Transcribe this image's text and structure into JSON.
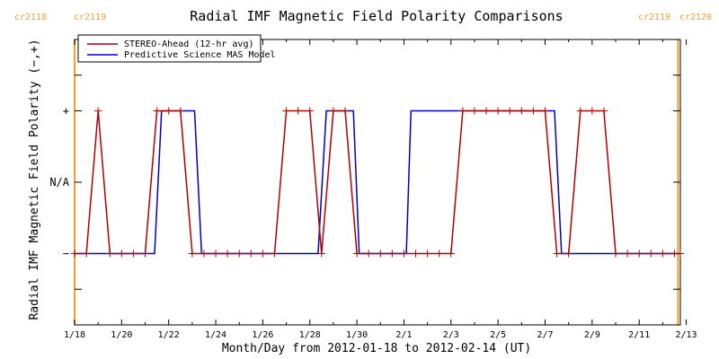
{
  "chart_data": {
    "type": "line",
    "title": "Radial IMF Magnetic Field Polarity Comparisons",
    "xlabel": "Month/Day from 2012-01-18 to 2012-02-14 (UT)",
    "ylabel": "Radial IMF Magnetic Field Polarity (−,+)",
    "xlim": [
      0,
      25.75
    ],
    "ylim": [
      -2,
      2
    ],
    "x_ticks": [
      {
        "value": 0,
        "label": "1/18"
      },
      {
        "value": 2,
        "label": "1/20"
      },
      {
        "value": 4,
        "label": "1/22"
      },
      {
        "value": 6,
        "label": "1/24"
      },
      {
        "value": 8,
        "label": "1/26"
      },
      {
        "value": 10,
        "label": "1/28"
      },
      {
        "value": 12,
        "label": "1/30"
      },
      {
        "value": 14,
        "label": "2/1"
      },
      {
        "value": 16,
        "label": "2/3"
      },
      {
        "value": 18,
        "label": "2/5"
      },
      {
        "value": 20,
        "label": "2/7"
      },
      {
        "value": 22,
        "label": "2/9"
      },
      {
        "value": 24,
        "label": "2/11"
      },
      {
        "value": 26,
        "label": "2/13"
      }
    ],
    "y_ticks": [
      {
        "value": 1,
        "label": "+"
      },
      {
        "value": 0,
        "label": "N/A"
      },
      {
        "value": -1,
        "label": "−"
      }
    ],
    "carrington_markers": [
      {
        "x": 0.0,
        "left_label": "cr2118",
        "right_label": "cr2119",
        "color": "#f0a030"
      },
      {
        "x": 25.65,
        "left_label": "cr2119",
        "right_label": "cr2120",
        "color": "#f0a030"
      }
    ],
    "legend_position": "top-left",
    "series": [
      {
        "name": "STEREO-Ahead (12-hr avg)",
        "color": "#b00000",
        "marker": "+",
        "x": [
          0.0,
          0.5,
          1.0,
          1.5,
          2.0,
          2.5,
          3.0,
          3.5,
          4.0,
          4.5,
          5.0,
          5.5,
          6.0,
          6.5,
          7.0,
          7.5,
          8.0,
          8.5,
          9.0,
          9.5,
          10.0,
          10.5,
          11.0,
          11.5,
          12.0,
          12.5,
          13.0,
          13.5,
          14.0,
          14.5,
          15.0,
          15.5,
          16.0,
          16.5,
          17.0,
          17.5,
          18.0,
          18.5,
          19.0,
          19.5,
          20.0,
          20.5,
          21.0,
          21.5,
          22.0,
          22.5,
          23.0,
          23.5,
          24.0,
          24.5,
          25.0,
          25.5,
          25.75
        ],
        "y": [
          -1,
          -1,
          1,
          -1,
          -1,
          -1,
          -1,
          1,
          1,
          1,
          -1,
          -1,
          -1,
          -1,
          -1,
          -1,
          -1,
          -1,
          1,
          1,
          1,
          -1,
          1,
          1,
          -1,
          -1,
          -1,
          -1,
          -1,
          -1,
          -1,
          -1,
          -1,
          1,
          1,
          1,
          1,
          1,
          1,
          1,
          1,
          -1,
          -1,
          1,
          1,
          1,
          -1,
          -1,
          -1,
          -1,
          -1,
          -1,
          -1
        ]
      },
      {
        "name": "Predictive Science MAS Model",
        "color": "#0000c0",
        "x": [
          0.0,
          3.4,
          3.7,
          5.1,
          5.4,
          10.35,
          10.7,
          11.85,
          12.1,
          14.1,
          14.3,
          20.4,
          20.7,
          25.75
        ],
        "y": [
          -1,
          -1,
          1,
          1,
          -1,
          -1,
          1,
          1,
          -1,
          -1,
          1,
          1,
          -1,
          -1
        ]
      }
    ]
  }
}
